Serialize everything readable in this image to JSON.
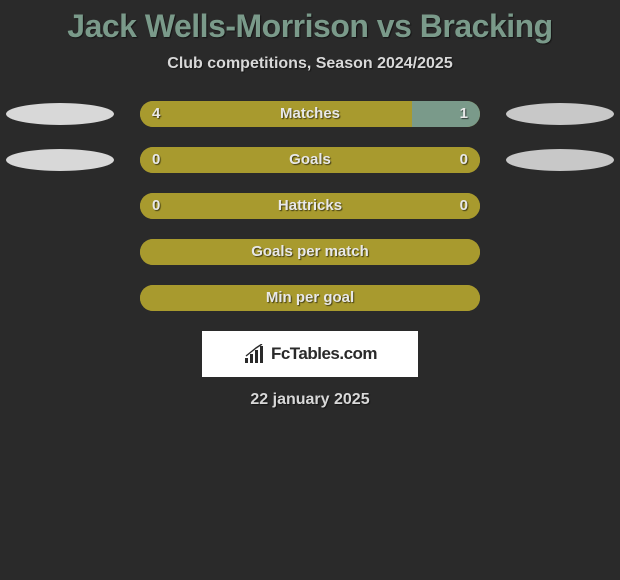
{
  "title": "Jack Wells-Morrison vs Bracking",
  "subtitle": "Club competitions, Season 2024/2025",
  "dateline": "22 january 2025",
  "branding_text": "FcTables.com",
  "colors": {
    "background": "#2a2a2a",
    "title_color": "#7a9a8a",
    "text_color": "#d8d8d8",
    "bar_left_color": "#a89a2e",
    "bar_right_color": "#7a9a8a",
    "oval_left_color": "#d8d8d8",
    "oval_right_color": "#c8c8c8",
    "branding_bg": "#ffffff"
  },
  "typography": {
    "title_fontsize": 32,
    "subtitle_fontsize": 16,
    "bar_label_fontsize": 15,
    "value_fontsize": 15,
    "brand_fontsize": 17,
    "dateline_fontsize": 16
  },
  "stats": [
    {
      "label": "Matches",
      "left_value": "4",
      "right_value": "1",
      "left_pct": 80,
      "right_pct": 20,
      "show_ovals": true
    },
    {
      "label": "Goals",
      "left_value": "0",
      "right_value": "0",
      "left_pct": 100,
      "right_pct": 0,
      "show_ovals": true
    },
    {
      "label": "Hattricks",
      "left_value": "0",
      "right_value": "0",
      "left_pct": 100,
      "right_pct": 0,
      "show_ovals": false
    },
    {
      "label": "Goals per match",
      "left_value": "",
      "right_value": "",
      "left_pct": 100,
      "right_pct": 0,
      "show_ovals": false
    },
    {
      "label": "Min per goal",
      "left_value": "",
      "right_value": "",
      "left_pct": 100,
      "right_pct": 0,
      "show_ovals": false
    }
  ]
}
